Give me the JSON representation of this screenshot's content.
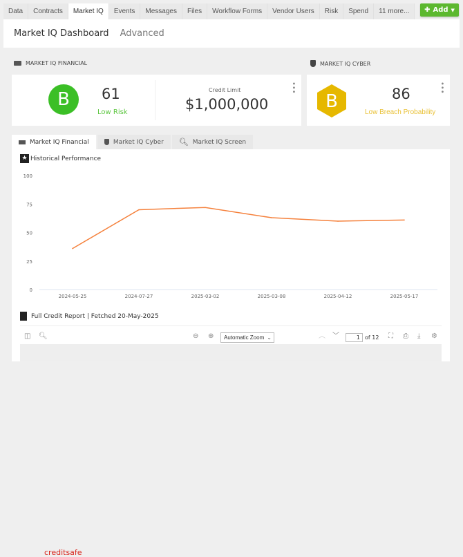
{
  "tabs": [
    "Data",
    "Contracts",
    "Market IQ",
    "Events",
    "Messages",
    "Files",
    "Workflow Forms",
    "Vendor Users",
    "Risk",
    "Spend",
    "11 more..."
  ],
  "active_tab": "Market IQ",
  "add_button": "Add",
  "header": {
    "title": "Market IQ Dashboard",
    "advanced": "Advanced"
  },
  "financial": {
    "section": "MARKET IQ FINANCIAL",
    "grade": "B",
    "score": "61",
    "risk": "Low Risk",
    "credit_label": "Credit Limit",
    "credit_value": "$1,000,000",
    "grade_color": "#3bbf26"
  },
  "cyber": {
    "section": "MARKET IQ CYBER",
    "grade": "B",
    "score": "86",
    "risk": "Low Breach Probability",
    "grade_color": "#e6b800"
  },
  "panel_tabs": [
    "Market IQ Financial",
    "Market IQ Cyber",
    "Market IQ Screen"
  ],
  "historical_title": "Historical Performance",
  "chart_data": {
    "type": "line",
    "categories": [
      "2024-05-25",
      "2024-07-27",
      "2025-03-02",
      "2025-03-08",
      "2025-04-12",
      "2025-05-17"
    ],
    "values": [
      36,
      70,
      72,
      63,
      60,
      61
    ],
    "ylim": [
      0,
      100
    ],
    "yticks": [
      0,
      25,
      50,
      75,
      100
    ],
    "color": "#f5813c",
    "grid": false
  },
  "report": {
    "title": "Full Credit Report | Fetched 20-May-2025",
    "zoom": "Automatic Zoom",
    "page": "1",
    "of": "of 12",
    "logo": "creditsafe"
  }
}
